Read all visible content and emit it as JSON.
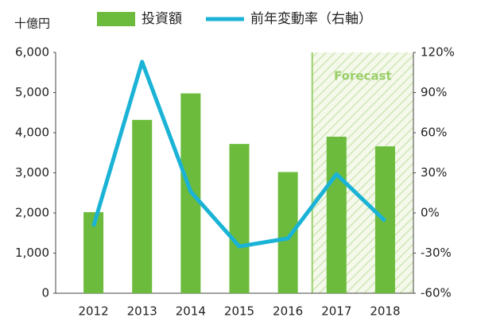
{
  "chart_data": {
    "type": "bar-line",
    "y_unit": "十億円",
    "categories": [
      "2012",
      "2013",
      "2014",
      "2015",
      "2016",
      "2017",
      "2018"
    ],
    "series": [
      {
        "name": "投資額",
        "type": "bar",
        "color": "#6cbb3c",
        "values": [
          2020,
          4320,
          4980,
          3720,
          3020,
          3900,
          3660
        ]
      },
      {
        "name": "前年変動率（右軸）",
        "type": "line",
        "axis": "y2",
        "color": "#1ab3d6",
        "values": [
          -10,
          113,
          16,
          -25,
          -19,
          29,
          -6
        ]
      }
    ],
    "ylim": [
      0,
      6000
    ],
    "yticks": [
      0,
      {
        "value": 1000,
        "label": "1,000"
      },
      {
        "value": 2000,
        "label": "2,000"
      },
      {
        "value": 3000,
        "label": "3,000"
      },
      {
        "value": 4000,
        "label": "4,000"
      },
      {
        "value": 5000,
        "label": "5,000"
      },
      {
        "value": 6000,
        "label": "6,000"
      }
    ],
    "y2lim": [
      -60,
      120
    ],
    "y2ticks": [
      {
        "value": -60,
        "label": "-60%"
      },
      {
        "value": -30,
        "label": "-30%"
      },
      {
        "value": 0,
        "label": "0%"
      },
      {
        "value": 30,
        "label": "30%"
      },
      {
        "value": 60,
        "label": "60%"
      },
      {
        "value": 90,
        "label": "90%"
      },
      {
        "value": 120,
        "label": "120%"
      }
    ],
    "forecast": {
      "label": "Forecast",
      "from": "2017",
      "color": "#9bcf6a"
    }
  }
}
